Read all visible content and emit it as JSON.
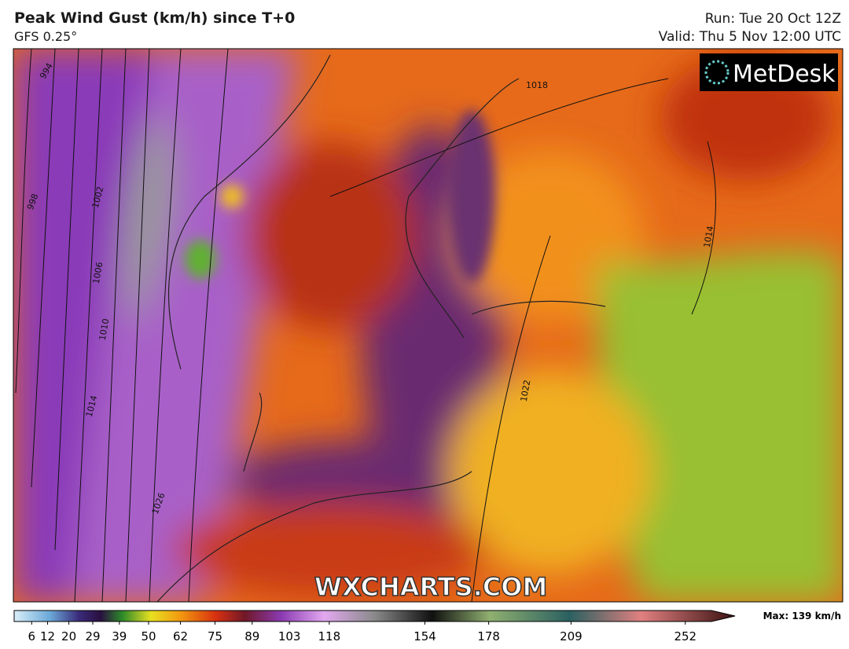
{
  "header": {
    "title": "Peak Wind Gust (km/h) since T+0",
    "subtitle": "GFS 0.25°",
    "run": "Run: Tue 20 Oct 12Z",
    "valid": "Valid: Thu 5 Nov 12:00 UTC"
  },
  "logo": "MetDesk",
  "watermark": "WXCHARTS.COM",
  "isobar_labels": [
    "994",
    "998",
    "1002",
    "1006",
    "1010",
    "1014",
    "1018",
    "1022",
    "1026",
    "1014"
  ],
  "colorbar": {
    "ticks": [
      6,
      12,
      20,
      29,
      39,
      50,
      62,
      75,
      89,
      103,
      118,
      154,
      178,
      209,
      252
    ],
    "max_label": "Max: 139 km/h"
  }
}
